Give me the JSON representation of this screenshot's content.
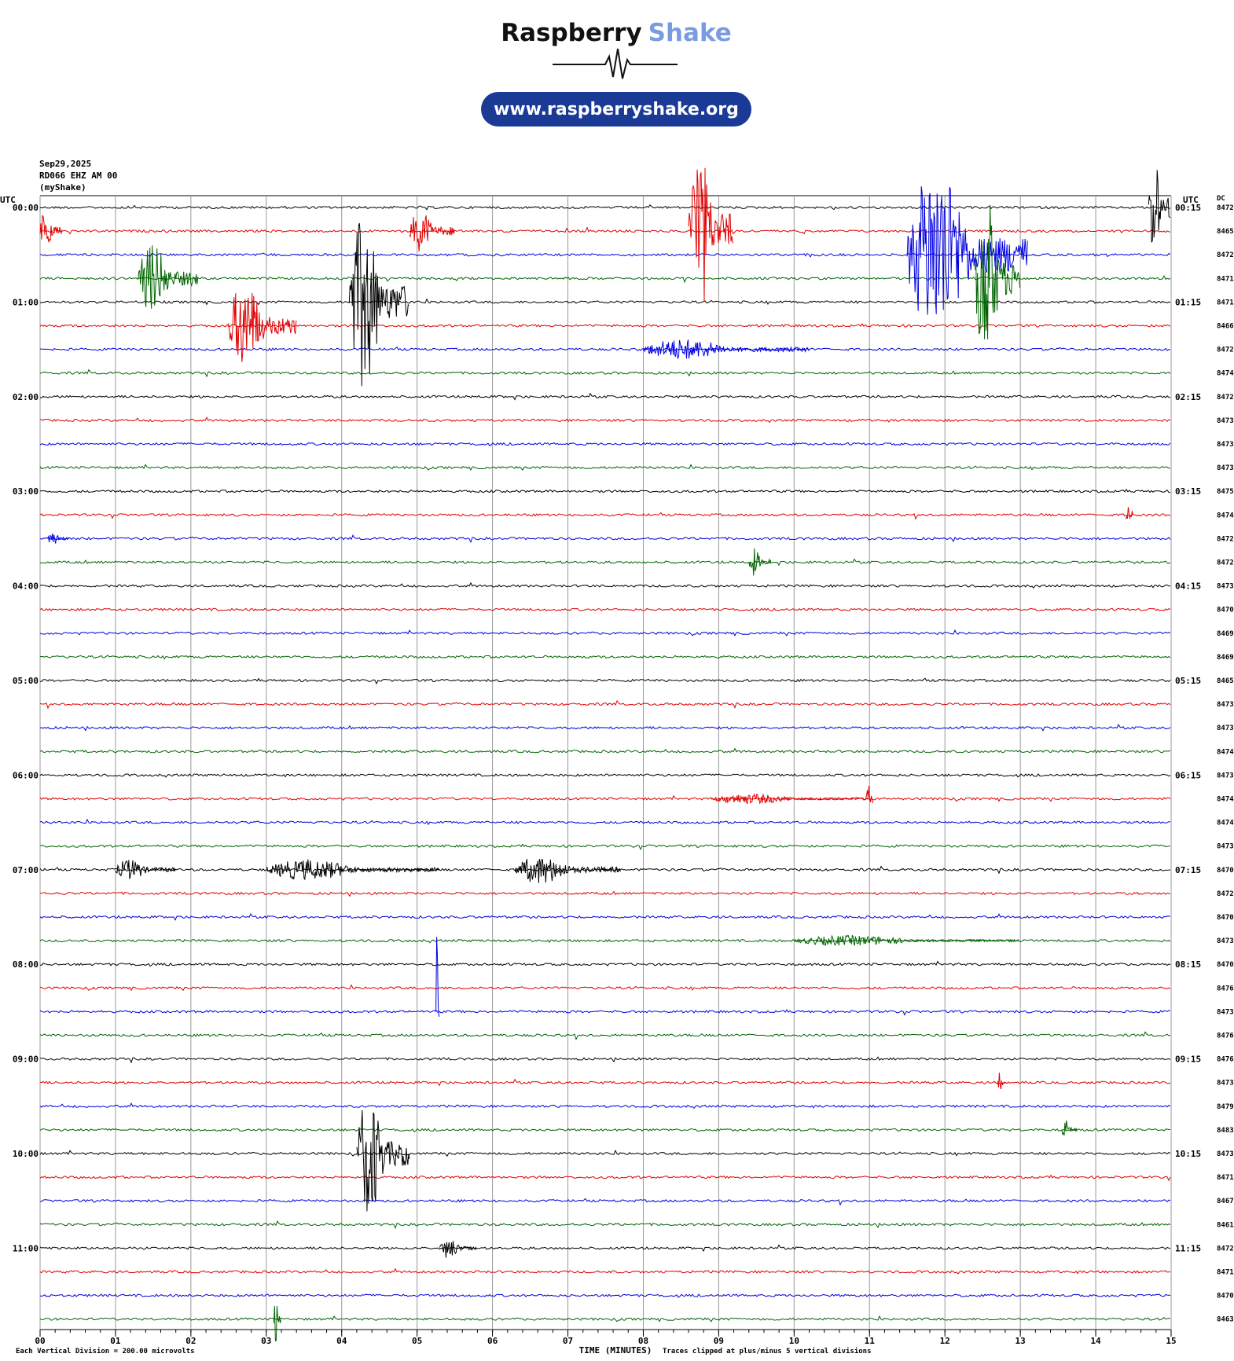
{
  "header": {
    "brand": "Raspberry",
    "brand_accent": "Shake",
    "url": "www.raspberryshake.org"
  },
  "chart_data": {
    "type": "helicorder",
    "date": "Sep29,2025",
    "station": "RD066 EHZ AM 00",
    "network": "(myShake)",
    "left_axis_label": "UTC",
    "right_axis_label": "UTC",
    "dc_label": "DC",
    "colors": [
      "#000000",
      "#e00000",
      "#0000e0",
      "#006400"
    ],
    "left_labels": [
      "00:00",
      "01:00",
      "02:00",
      "03:00",
      "04:00",
      "05:00",
      "06:00",
      "07:00",
      "08:00",
      "09:00",
      "10:00",
      "11:00"
    ],
    "right_labels": [
      "00:15",
      "01:15",
      "02:15",
      "03:15",
      "04:15",
      "05:15",
      "06:15",
      "07:15",
      "08:15",
      "09:15",
      "10:15",
      "11:15"
    ],
    "dc_values": [
      8472,
      8465,
      8472,
      8471,
      8471,
      8466,
      8472,
      8474,
      8472,
      8473,
      8473,
      8473,
      8475,
      8474,
      8472,
      8472,
      8473,
      8470,
      8469,
      8469,
      8465,
      8473,
      8473,
      8474,
      8473,
      8474,
      8474,
      8473,
      8470,
      8472,
      8470,
      8473,
      8470,
      8476,
      8473,
      8476,
      8476,
      8473,
      8479,
      8483,
      8473,
      8471,
      8467,
      8461,
      8472,
      8471,
      8470,
      8463
    ],
    "xlim": [
      0,
      15
    ],
    "xticks": [
      {
        "value": 0,
        "label": "00"
      },
      {
        "value": 1,
        "label": "01"
      },
      {
        "value": 2,
        "label": "02"
      },
      {
        "value": 3,
        "label": "03"
      },
      {
        "value": 4,
        "label": "04"
      },
      {
        "value": 5,
        "label": "05"
      },
      {
        "value": 6,
        "label": "06"
      },
      {
        "value": 7,
        "label": "07"
      },
      {
        "value": 8,
        "label": "08"
      },
      {
        "value": 9,
        "label": "09"
      },
      10,
      11,
      12,
      13,
      14,
      15
    ],
    "xlabel": "TIME (MINUTES)",
    "footer_left": "Each Vertical Division =  200.00 microvolts",
    "footer_right": "Traces clipped at plus/minus 5 vertical divisions",
    "events": [
      {
        "line": 0,
        "start": 14.7,
        "end": 15,
        "amplitude": 3
      },
      {
        "line": 1,
        "start": 0,
        "end": 0.3,
        "amplitude": 1.2
      },
      {
        "line": 1,
        "start": 4.9,
        "end": 5.5,
        "amplitude": 1.2
      },
      {
        "line": 1,
        "start": 8.6,
        "end": 9.2,
        "amplitude": 5
      },
      {
        "line": 2,
        "start": 11.5,
        "end": 13.1,
        "amplitude": 5
      },
      {
        "line": 3,
        "start": 1.3,
        "end": 2.1,
        "amplitude": 2
      },
      {
        "line": 3,
        "start": 12.4,
        "end": 13.0,
        "amplitude": 5
      },
      {
        "line": 4,
        "start": 4.1,
        "end": 4.9,
        "amplitude": 5
      },
      {
        "line": 5,
        "start": 2.5,
        "end": 3.4,
        "amplitude": 2.5
      },
      {
        "line": 6,
        "start": 8.0,
        "end": 10.2,
        "amplitude": 0.6
      },
      {
        "line": 13,
        "start": 14.4,
        "end": 14.5,
        "amplitude": 1.2
      },
      {
        "line": 14,
        "start": 0.1,
        "end": 0.4,
        "amplitude": 0.4
      },
      {
        "line": 15,
        "start": 9.4,
        "end": 9.7,
        "amplitude": 0.8
      },
      {
        "line": 25,
        "start": 8.9,
        "end": 11.0,
        "amplitude": 0.3
      },
      {
        "line": 25,
        "start": 10.95,
        "end": 11.05,
        "amplitude": 1.3
      },
      {
        "line": 28,
        "start": 1.0,
        "end": 1.8,
        "amplitude": 0.6
      },
      {
        "line": 28,
        "start": 3.0,
        "end": 5.3,
        "amplitude": 0.6
      },
      {
        "line": 28,
        "start": 6.3,
        "end": 7.7,
        "amplitude": 0.8
      },
      {
        "line": 31,
        "start": 10.0,
        "end": 13.0,
        "amplitude": 0.3
      },
      {
        "line": 34,
        "start": 5.25,
        "end": 5.3,
        "amplitude": 5
      },
      {
        "line": 37,
        "start": 12.7,
        "end": 12.8,
        "amplitude": 0.6
      },
      {
        "line": 39,
        "start": 13.55,
        "end": 13.75,
        "amplitude": 0.6
      },
      {
        "line": 40,
        "start": 4.2,
        "end": 4.9,
        "amplitude": 3.5
      },
      {
        "line": 44,
        "start": 5.3,
        "end": 5.8,
        "amplitude": 0.6
      },
      {
        "line": 47,
        "start": 3.1,
        "end": 3.2,
        "amplitude": 1.5
      }
    ]
  }
}
